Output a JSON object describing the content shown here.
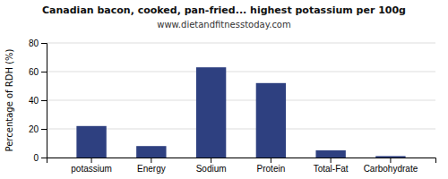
{
  "chart_data": {
    "type": "bar",
    "title": "Canadian bacon, cooked, pan-fried... highest potassium per 100g",
    "subtitle": "www.dietandfitnesstoday.com",
    "categories": [
      "potassium",
      "Energy",
      "Sodium",
      "Protein",
      "Total-Fat",
      "Carbohydrate"
    ],
    "values": [
      22,
      8,
      63,
      52,
      5,
      1
    ],
    "color": "#2e4080",
    "ylabel": "Percentage of RDH (%)",
    "ylim": [
      0,
      80
    ],
    "yticks": [
      0,
      20,
      40,
      60,
      80
    ],
    "grid": true
  }
}
